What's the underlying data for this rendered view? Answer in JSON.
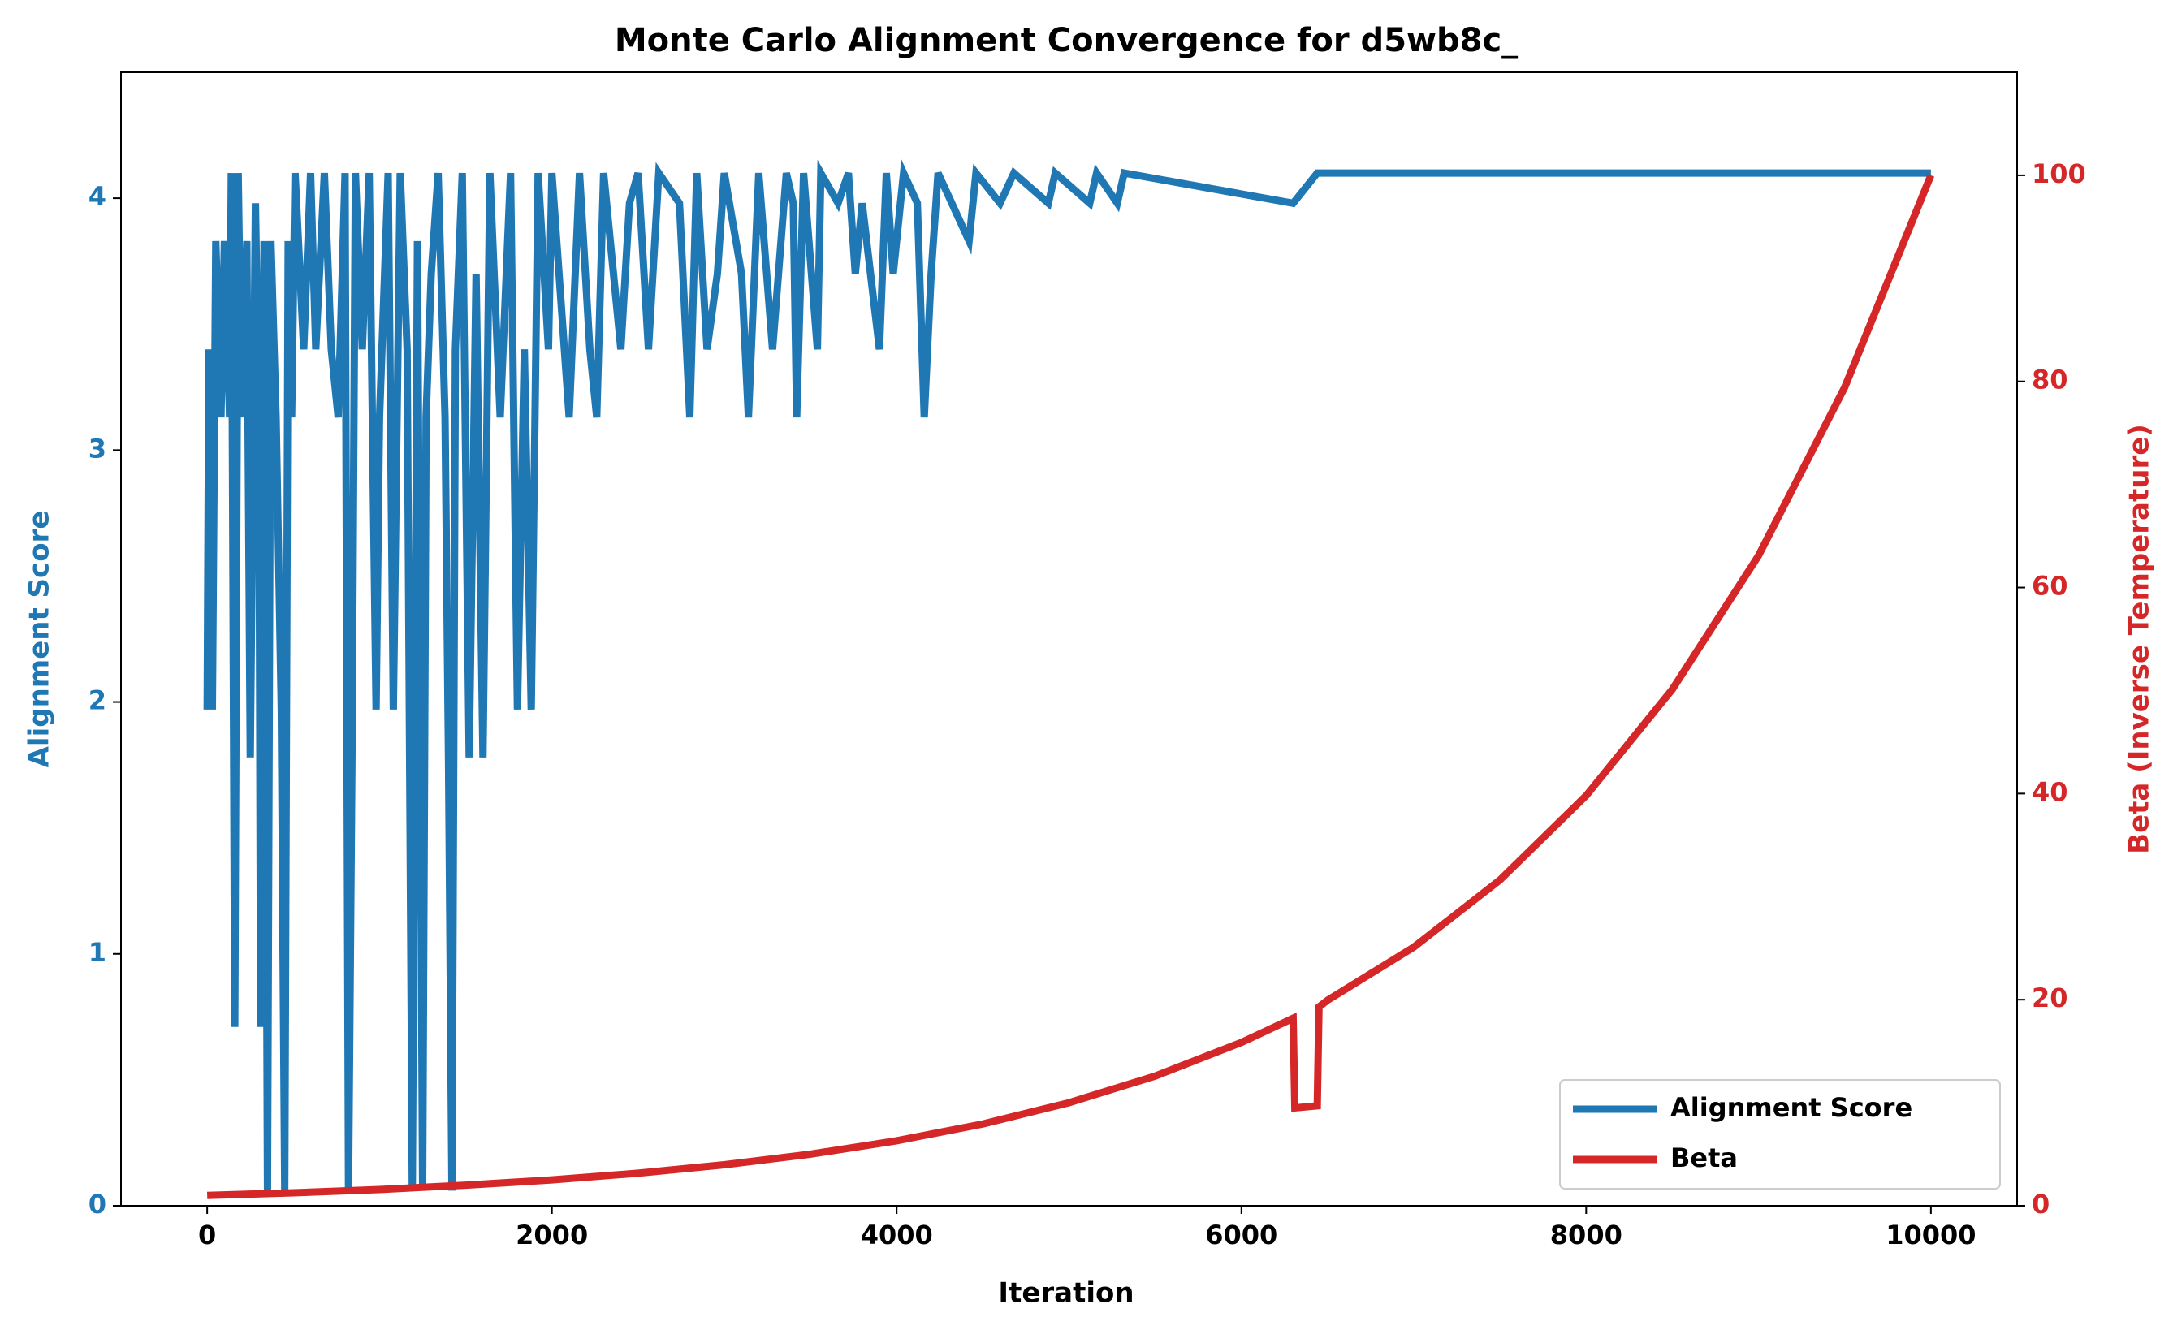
{
  "chart_data": {
    "type": "line",
    "title": "Monte Carlo Alignment Convergence for d5wb8c_",
    "x_label": "Iteration",
    "y_label": "Alignment Score",
    "y2_label": "Beta (Inverse Temperature)",
    "xlim": [
      -500,
      10500
    ],
    "xticks": [
      0,
      2000,
      4000,
      6000,
      8000,
      10000
    ],
    "ylim": [
      0,
      4.5
    ],
    "yticks": [
      0,
      1,
      2,
      3,
      4
    ],
    "y2lim": [
      0,
      110
    ],
    "y2ticks": [
      0,
      20,
      40,
      60,
      80,
      100
    ],
    "legend": "lower right",
    "series": [
      {
        "name": "Alignment Score",
        "color": "#1f77b4",
        "axis": "y",
        "x": [
          0,
          10,
          30,
          50,
          80,
          100,
          130,
          140,
          160,
          180,
          200,
          230,
          250,
          280,
          300,
          310,
          330,
          350,
          370,
          400,
          430,
          450,
          470,
          490,
          510,
          560,
          600,
          630,
          680,
          720,
          760,
          800,
          820,
          840,
          860,
          900,
          940,
          980,
          1000,
          1050,
          1080,
          1120,
          1160,
          1190,
          1220,
          1250,
          1270,
          1300,
          1340,
          1380,
          1400,
          1420,
          1440,
          1480,
          1520,
          1560,
          1600,
          1640,
          1700,
          1760,
          1800,
          1840,
          1880,
          1920,
          1980,
          2000,
          2100,
          2160,
          2220,
          2260,
          2300,
          2400,
          2450,
          2500,
          2560,
          2620,
          2740,
          2800,
          2840,
          2900,
          2960,
          3000,
          3100,
          3140,
          3200,
          3280,
          3360,
          3400,
          3420,
          3460,
          3540,
          3560,
          3660,
          3720,
          3760,
          3800,
          3900,
          3940,
          3980,
          4040,
          4120,
          4160,
          4200,
          4240,
          4420,
          4460,
          4600,
          4680,
          4880,
          4920,
          5120,
          5160,
          5280,
          5320,
          6300,
          6440,
          10000
        ],
        "values": [
          1.97,
          3.4,
          1.97,
          3.83,
          3.13,
          3.83,
          3.13,
          4.1,
          0.71,
          4.1,
          3.13,
          3.83,
          1.78,
          3.98,
          3.13,
          0.71,
          3.83,
          0.06,
          3.83,
          3.13,
          1.97,
          0.06,
          3.83,
          3.13,
          4.1,
          3.4,
          4.1,
          3.4,
          4.1,
          3.4,
          3.13,
          4.1,
          0.06,
          1.78,
          4.1,
          3.4,
          4.1,
          1.97,
          3.13,
          4.1,
          1.97,
          4.1,
          3.4,
          0.06,
          3.83,
          0.06,
          3.13,
          3.7,
          4.1,
          3.13,
          1.78,
          0.06,
          3.4,
          4.1,
          1.78,
          3.7,
          1.78,
          4.1,
          3.13,
          4.1,
          1.97,
          3.4,
          1.97,
          4.1,
          3.4,
          4.1,
          3.13,
          4.1,
          3.4,
          3.13,
          4.1,
          3.4,
          3.98,
          4.1,
          3.4,
          4.1,
          3.98,
          3.13,
          4.1,
          3.4,
          3.7,
          4.1,
          3.7,
          3.13,
          4.1,
          3.4,
          4.1,
          3.98,
          3.13,
          4.1,
          3.4,
          4.1,
          3.98,
          4.1,
          3.7,
          3.98,
          3.4,
          4.1,
          3.7,
          4.1,
          3.98,
          3.13,
          3.7,
          4.1,
          3.83,
          4.1,
          3.98,
          4.1,
          3.98,
          4.1,
          3.98,
          4.1,
          3.98,
          4.1,
          3.98,
          4.1,
          4.1
        ]
      },
      {
        "name": "Beta",
        "color": "#d62728",
        "axis": "y2",
        "x": [
          0,
          500,
          1000,
          1500,
          2000,
          2500,
          3000,
          3500,
          4000,
          4500,
          5000,
          5500,
          6000,
          6300,
          6310,
          6440,
          6450,
          6500,
          7000,
          7500,
          8000,
          8500,
          9000,
          9500,
          10000
        ],
        "values": [
          1,
          1.26,
          1.58,
          2,
          2.51,
          3.16,
          3.98,
          5.01,
          6.31,
          7.94,
          10,
          12.59,
          15.85,
          18.2,
          9.5,
          9.7,
          19.3,
          19.95,
          25.1,
          31.62,
          39.8,
          50.12,
          63.1,
          79.43,
          100
        ]
      }
    ]
  }
}
